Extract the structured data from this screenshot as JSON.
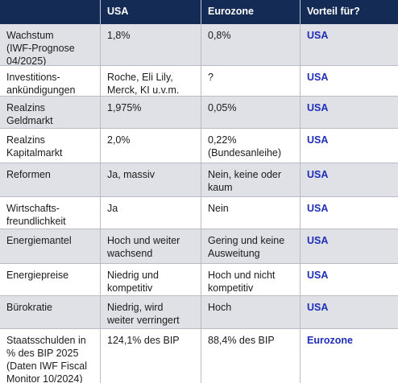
{
  "header": [
    "",
    "USA",
    "Eurozone",
    "Vorteil für?"
  ],
  "rows": [
    {
      "criterion": "Wachstum\n(IWF-Prognose\n04/2025)",
      "usa": "1,8%",
      "eurozone": "0,8%",
      "advantage": "USA"
    },
    {
      "criterion": "Investitions-\nankündigungen",
      "usa": "Roche, Eli Lily,\nMerck, KI u.v.m.",
      "eurozone": "?",
      "advantage": "USA"
    },
    {
      "criterion": "Realzins\nGeldmarkt",
      "usa": "1,975%",
      "eurozone": "0,05%",
      "advantage": "USA"
    },
    {
      "criterion": "Realzins\nKapitalmarkt",
      "usa": "2,0%",
      "eurozone": "0,22%\n(Bundesanleihe)",
      "advantage": "USA"
    },
    {
      "criterion": "Reformen",
      "usa": "Ja, massiv",
      "eurozone": "Nein, keine oder\nkaum",
      "advantage": "USA"
    },
    {
      "criterion": "Wirtschafts-\nfreundlichkeit",
      "usa": "Ja",
      "eurozone": "Nein",
      "advantage": "USA"
    },
    {
      "criterion": "Energiemantel",
      "usa": "Hoch und weiter\nwachsend",
      "eurozone": "Gering und keine\nAusweitung",
      "advantage": "USA"
    },
    {
      "criterion": "Energiepreise",
      "usa": "Niedrig und\nkompetitiv",
      "eurozone": "Hoch und nicht\nkompetitiv",
      "advantage": "USA"
    },
    {
      "criterion": "Bürokratie",
      "usa": "Niedrig, wird\nweiter verringert",
      "eurozone": "Hoch",
      "advantage": "USA"
    },
    {
      "criterion": "Staatsschulden in\n% des BIP 2025\n(Daten IWF Fiscal\nMonitor 10/2024)",
      "usa": "124,1% des BIP",
      "eurozone": "88,4% des BIP",
      "advantage": "Eurozone"
    }
  ]
}
